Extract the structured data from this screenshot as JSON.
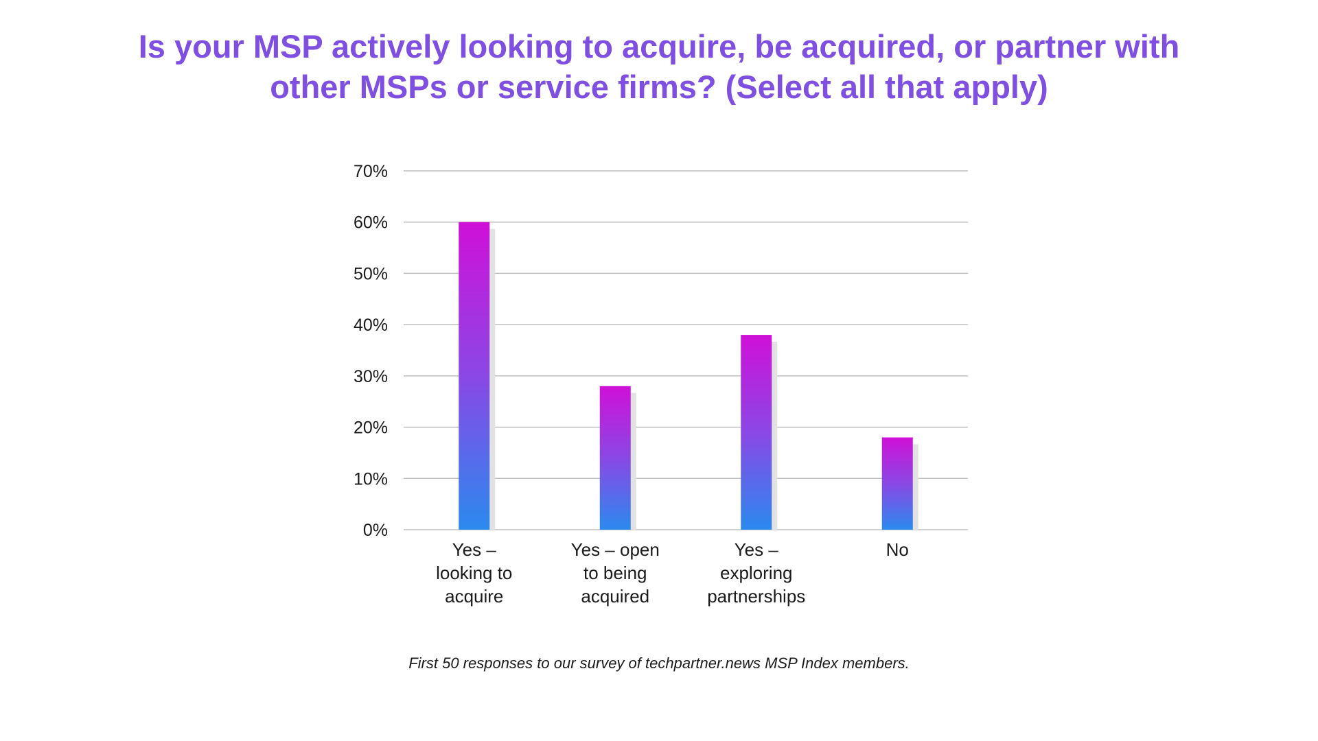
{
  "title": {
    "line1": "Is your MSP actively looking to acquire, be acquired, or partner with",
    "line2": "other MSPs or service firms? (Select all that apply)"
  },
  "footnote": "First 50 responses to our survey of techpartner.news MSP Index members.",
  "colors": {
    "title": "#7e4fe0",
    "bar_top": "#d010d8",
    "bar_mid": "#8a48e4",
    "bar_bottom": "#2b8aee",
    "bar_shadow": "#e2e2e2",
    "gridline": "#bdbdbd",
    "text": "#1a1a1a"
  },
  "chart_data": {
    "type": "bar",
    "title": "Is your MSP actively looking to acquire, be acquired, or partner with other MSPs or service firms? (Select all that apply)",
    "categories": [
      [
        "Yes –",
        "looking to",
        "acquire"
      ],
      [
        "Yes – open",
        "to being",
        "acquired"
      ],
      [
        "Yes –",
        "exploring",
        "partnerships"
      ],
      [
        "No"
      ]
    ],
    "values": [
      60,
      28,
      38,
      18
    ],
    "ylim": [
      0,
      70
    ],
    "yticks": [
      0,
      10,
      20,
      30,
      40,
      50,
      60,
      70
    ],
    "ytick_labels": [
      "0%",
      "10%",
      "20%",
      "30%",
      "40%",
      "50%",
      "60%",
      "70%"
    ],
    "xlabel": "",
    "ylabel": "",
    "grid": true,
    "legend": "none"
  }
}
